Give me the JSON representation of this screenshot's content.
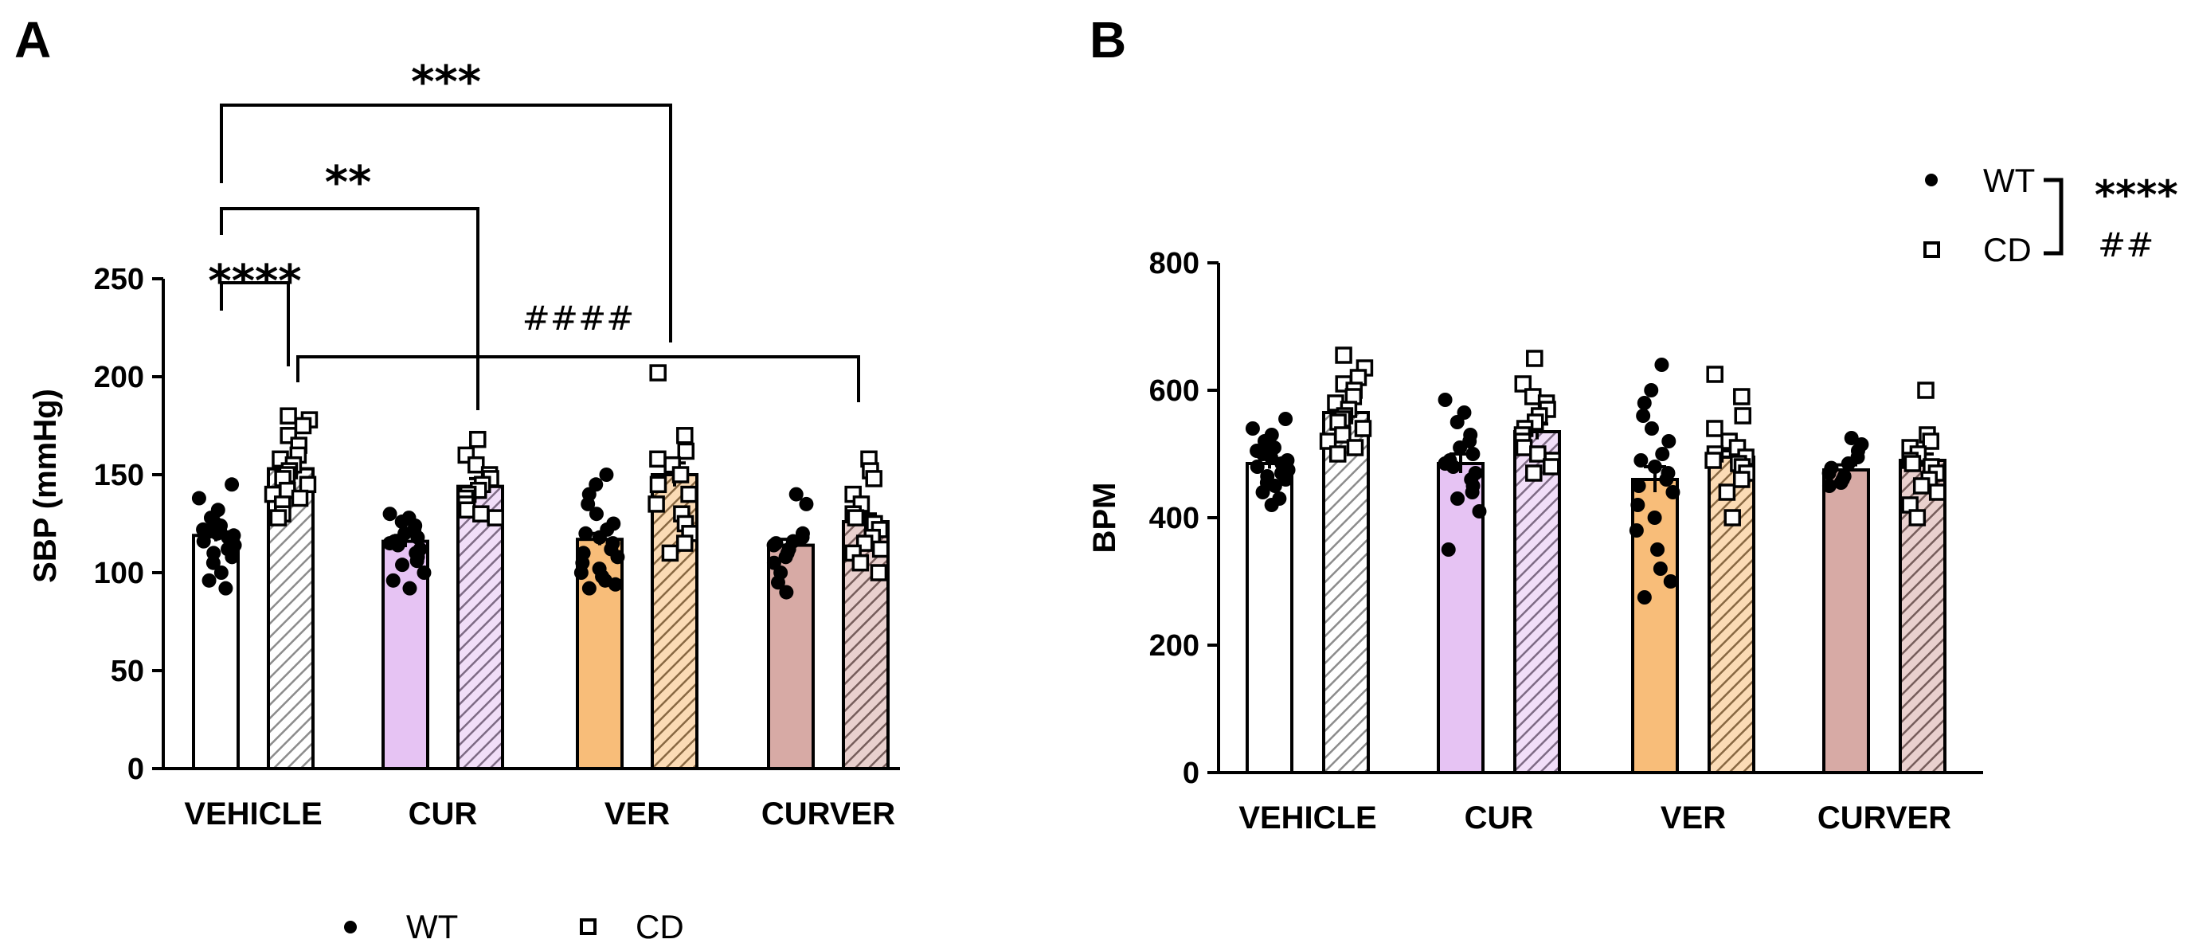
{
  "colors": {
    "VEHICLE": "#ffffff",
    "CUR": "#e6c3f3",
    "VER": "#f8bd79",
    "CURVER": "#d7aaa5",
    "ink": "#000000"
  },
  "chart_data": [
    {
      "panel": "A",
      "type": "bar",
      "categories": [
        "VEHICLE",
        "CUR",
        "VER",
        "CURVER"
      ],
      "ylabel": "SBP (mmHg)",
      "ylim": [
        0,
        250
      ],
      "yticks": [
        "0",
        "50",
        "100",
        "150",
        "200",
        "250"
      ],
      "series": [
        {
          "name": "WT",
          "marker": "filled-circle",
          "pattern": "solid",
          "means": [
            119,
            116,
            117,
            114
          ],
          "errors": [
            3,
            3,
            3,
            3
          ],
          "points": [
            [
              145,
              138,
              132,
              128,
              126,
              124,
              122,
              121,
              120,
              119,
              118,
              116,
              114,
              112,
              110,
              108,
              105,
              100,
              96,
              92
            ],
            [
              130,
              128,
              126,
              124,
              122,
              120,
              118,
              116,
              115,
              114,
              112,
              110,
              108,
              106,
              104,
              100,
              96,
              92
            ],
            [
              150,
              145,
              140,
              135,
              130,
              125,
              122,
              120,
              118,
              115,
              112,
              110,
              108,
              105,
              102,
              100,
              98,
              96,
              94,
              92
            ],
            [
              140,
              135,
              120,
              118,
              116,
              115,
              114,
              112,
              110,
              108,
              105,
              100,
              95,
              90
            ]
          ]
        },
        {
          "name": "CD",
          "marker": "open-square",
          "pattern": "hatched",
          "means": [
            153,
            144,
            150,
            126
          ],
          "errors": [
            5,
            4,
            6,
            4
          ],
          "points": [
            [
              180,
              178,
              175,
              170,
              165,
              160,
              158,
              155,
              152,
              150,
              148,
              145,
              142,
              140,
              138,
              135,
              130,
              128
            ],
            [
              168,
              160,
              155,
              150,
              148,
              145,
              142,
              140,
              138,
              135,
              132,
              130,
              128
            ],
            [
              202,
              170,
              162,
              158,
              155,
              150,
              145,
              140,
              135,
              130,
              125,
              120,
              115,
              110
            ],
            [
              158,
              152,
              148,
              140,
              135,
              130,
              128,
              125,
              122,
              118,
              115,
              112,
              110,
              105,
              100
            ]
          ]
        }
      ],
      "annotations": [
        {
          "label": "****",
          "between": "VEHICLE WT vs VEHICLE CD"
        },
        {
          "label": "**",
          "between": "VEHICLE WT vs CUR CD"
        },
        {
          "label": "***",
          "between": "VEHICLE WT vs VER CD"
        },
        {
          "label": "####",
          "between": "VEHICLE CD vs CURVER CD"
        }
      ],
      "legend": {
        "placement": "bottom",
        "entries": [
          "WT",
          "CD"
        ]
      }
    },
    {
      "panel": "B",
      "type": "bar",
      "categories": [
        "VEHICLE",
        "CUR",
        "VER",
        "CURVER"
      ],
      "ylabel": "BPM",
      "ylim": [
        0,
        800
      ],
      "yticks": [
        "0",
        "200",
        "400",
        "600",
        "800"
      ],
      "series": [
        {
          "name": "WT",
          "marker": "filled-circle",
          "pattern": "solid",
          "means": [
            485,
            485,
            460,
            475
          ],
          "errors": [
            8,
            15,
            20,
            8
          ],
          "points": [
            [
              555,
              540,
              530,
              520,
              515,
              510,
              505,
              500,
              495,
              490,
              485,
              480,
              475,
              470,
              465,
              460,
              455,
              450,
              440,
              430,
              420
            ],
            [
              585,
              565,
              550,
              530,
              520,
              510,
              500,
              490,
              485,
              480,
              470,
              460,
              450,
              440,
              430,
              410,
              350
            ],
            [
              640,
              600,
              580,
              560,
              540,
              520,
              500,
              490,
              480,
              470,
              460,
              450,
              440,
              420,
              400,
              380,
              350,
              320,
              300,
              275
            ],
            [
              525,
              515,
              505,
              495,
              485,
              478,
              470,
              465,
              460,
              455,
              450
            ]
          ]
        },
        {
          "name": "CD",
          "marker": "open-square",
          "pattern": "hatched",
          "means": [
            565,
            535,
            495,
            490
          ],
          "errors": [
            8,
            12,
            10,
            10
          ],
          "points": [
            [
              655,
              635,
              620,
              610,
              600,
              590,
              580,
              570,
              560,
              555,
              550,
              540,
              530,
              520,
              510,
              500
            ],
            [
              650,
              610,
              590,
              580,
              570,
              560,
              550,
              540,
              530,
              520,
              510,
              500,
              490,
              480,
              470
            ],
            [
              625,
              590,
              560,
              540,
              520,
              510,
              500,
              495,
              490,
              485,
              480,
              470,
              460,
              440,
              400
            ],
            [
              600,
              530,
              520,
              510,
              500,
              490,
              485,
              480,
              470,
              460,
              450,
              440,
              420,
              400
            ]
          ]
        }
      ],
      "annotations": [
        {
          "label": "****",
          "between": "WT vs CD"
        },
        {
          "label": "##",
          "between": "WT vs CD"
        }
      ],
      "legend": {
        "placement": "top-right",
        "entries": [
          "WT",
          "CD"
        ]
      }
    }
  ]
}
